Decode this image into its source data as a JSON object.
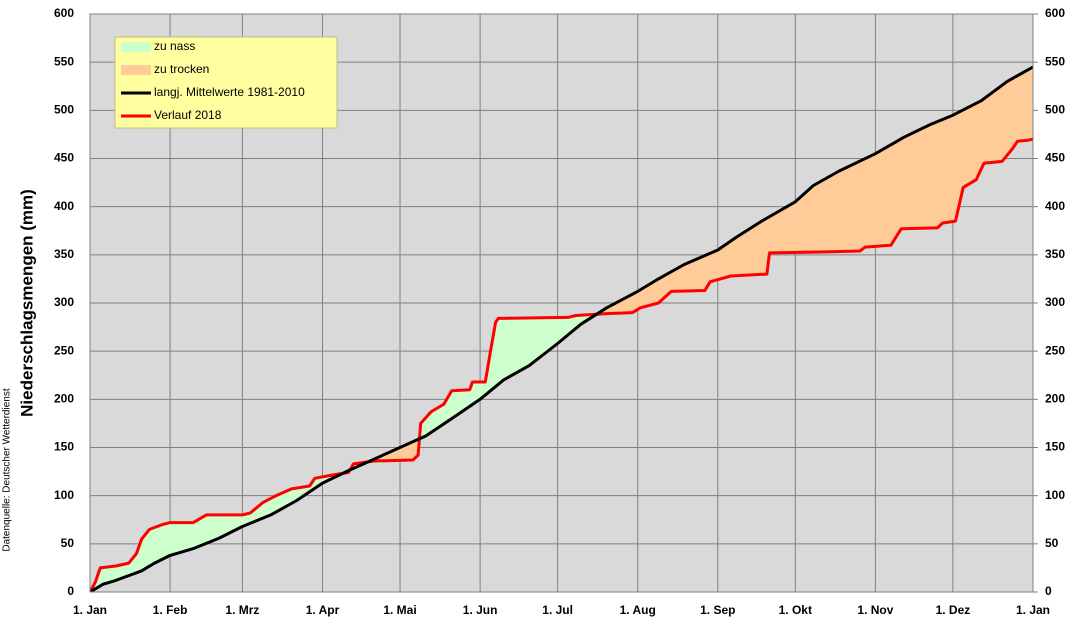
{
  "chart_data": {
    "type": "line",
    "y_label": "Niederschlagsmengen (mm)",
    "source": "Datenquelle: Deutscher Wetterdienst",
    "xlim": [
      0,
      365
    ],
    "xticks": [
      {
        "value": 0,
        "label": "1. Jan"
      },
      {
        "value": 31,
        "label": "1. Feb"
      },
      {
        "value": 59,
        "label": "1. Mrz"
      },
      {
        "value": 90,
        "label": "1. Apr"
      },
      {
        "value": 120,
        "label": "1. Mai"
      },
      {
        "value": 151,
        "label": "1. Jun"
      },
      {
        "value": 181,
        "label": "1. Jul"
      },
      {
        "value": 212,
        "label": "1. Aug"
      },
      {
        "value": 243,
        "label": "1. Sep"
      },
      {
        "value": 273,
        "label": "1. Okt"
      },
      {
        "value": 304,
        "label": "1. Nov"
      },
      {
        "value": 334,
        "label": "1. Dez"
      },
      {
        "value": 365,
        "label": "1. Jan"
      }
    ],
    "ylim": [
      0,
      600
    ],
    "yticks": [
      0,
      50,
      100,
      150,
      200,
      250,
      300,
      350,
      400,
      450,
      500,
      550,
      600
    ],
    "y2lim": [
      0,
      600
    ],
    "y2ticks": [
      0,
      50,
      100,
      150,
      200,
      250,
      300,
      350,
      400,
      450,
      500,
      550,
      600
    ],
    "grid": true,
    "legend": "upper left",
    "fills": [
      {
        "name": "zu nass",
        "color": "#ccffcc"
      },
      {
        "name": "zu trocken",
        "color": "#ffcc99"
      }
    ],
    "series": [
      {
        "name": "langj. Mittelwerte 1981-2010",
        "color": "#000000",
        "x": [
          0,
          5,
          10,
          15,
          20,
          25,
          31,
          40,
          50,
          59,
          70,
          80,
          90,
          100,
          110,
          120,
          130,
          140,
          151,
          160,
          170,
          181,
          190,
          200,
          212,
          220,
          230,
          243,
          250,
          260,
          273,
          280,
          290,
          304,
          315,
          325,
          334,
          345,
          355,
          365
        ],
        "values": [
          0,
          8,
          12,
          17,
          22,
          30,
          38,
          45,
          56,
          68,
          80,
          95,
          113,
          126,
          138,
          150,
          162,
          180,
          200,
          220,
          235,
          258,
          278,
          295,
          312,
          325,
          340,
          355,
          368,
          385,
          405,
          422,
          437,
          455,
          472,
          485,
          495,
          510,
          530,
          545
        ]
      },
      {
        "name": "Verlauf 2018",
        "color": "#ff0000",
        "x": [
          0,
          2,
          4,
          10,
          15,
          18,
          20,
          23,
          28,
          31,
          40,
          45,
          59,
          62,
          67,
          72,
          78,
          85,
          87,
          95,
          100,
          102,
          110,
          125,
          127,
          128,
          132,
          137,
          140,
          147,
          148,
          153,
          155,
          157,
          158,
          185,
          188,
          200,
          210,
          213,
          220,
          225,
          238,
          240,
          248,
          262,
          263,
          285,
          298,
          300,
          310,
          314,
          328,
          330,
          335,
          338,
          343,
          346,
          353,
          357,
          359,
          363,
          365
        ],
        "values": [
          0,
          10,
          25,
          27,
          30,
          40,
          55,
          65,
          70,
          72,
          72,
          80,
          80,
          82,
          93,
          100,
          107,
          110,
          118,
          122,
          124,
          133,
          136,
          137,
          142,
          175,
          187,
          195,
          209,
          210,
          218,
          218,
          250,
          280,
          284,
          285,
          287,
          289,
          290,
          295,
          300,
          312,
          313,
          322,
          328,
          330,
          352,
          353,
          354,
          358,
          360,
          377,
          378,
          383,
          385,
          420,
          428,
          445,
          447,
          460,
          468,
          469,
          470
        ]
      }
    ]
  }
}
